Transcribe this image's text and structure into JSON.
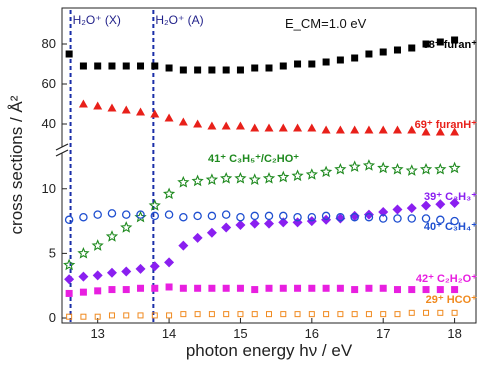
{
  "chart_data": {
    "type": "scatter",
    "xlabel": "photon energy hν / eV",
    "ylabel": "cross sections / Å²",
    "xlim": [
      12.5,
      18.3
    ],
    "x_ticks": [
      "13",
      "14",
      "15",
      "16",
      "17",
      "18"
    ],
    "y_ticks_upper": [
      "40",
      "60",
      "80"
    ],
    "y_ticks_lower": [
      "0",
      "5",
      "10"
    ],
    "axis_break": true,
    "ylim_lower": [
      0,
      13
    ],
    "ylim_upper": [
      28,
      88
    ],
    "condition_label": "E_CM=1.0 eV",
    "thresholds": [
      {
        "label": "H₂O⁺ (X)",
        "x": 12.62,
        "color": "#1a2ea8"
      },
      {
        "label": "H₂O⁺ (A)",
        "x": 13.78,
        "color": "#1a2ea8"
      }
    ],
    "series": [
      {
        "name": "68⁺ furan⁺",
        "color": "#000000",
        "marker": "square",
        "panel": "upper",
        "points": [
          [
            12.6,
            75
          ],
          [
            12.8,
            69
          ],
          [
            13.0,
            69
          ],
          [
            13.2,
            69
          ],
          [
            13.4,
            69
          ],
          [
            13.6,
            69
          ],
          [
            13.8,
            69
          ],
          [
            14.0,
            68
          ],
          [
            14.2,
            67
          ],
          [
            14.4,
            67
          ],
          [
            14.6,
            67
          ],
          [
            14.8,
            67
          ],
          [
            15.0,
            67
          ],
          [
            15.2,
            68
          ],
          [
            15.4,
            68
          ],
          [
            15.6,
            69
          ],
          [
            15.8,
            70
          ],
          [
            16.0,
            70
          ],
          [
            16.2,
            71
          ],
          [
            16.4,
            72
          ],
          [
            16.6,
            73
          ],
          [
            16.8,
            75
          ],
          [
            17.0,
            76
          ],
          [
            17.2,
            77
          ],
          [
            17.4,
            78
          ],
          [
            17.6,
            80
          ],
          [
            17.8,
            81
          ],
          [
            18.0,
            82
          ]
        ]
      },
      {
        "name": "69⁺ furanH⁺",
        "color": "#e8201a",
        "marker": "triangle",
        "panel": "upper",
        "points": [
          [
            12.8,
            50
          ],
          [
            13.0,
            49
          ],
          [
            13.2,
            48
          ],
          [
            13.4,
            47
          ],
          [
            13.6,
            46
          ],
          [
            13.8,
            45
          ],
          [
            14.0,
            43
          ],
          [
            14.2,
            41
          ],
          [
            14.4,
            40
          ],
          [
            14.6,
            39
          ],
          [
            14.8,
            39
          ],
          [
            15.0,
            39
          ],
          [
            15.2,
            38
          ],
          [
            15.4,
            38
          ],
          [
            15.6,
            38
          ],
          [
            15.8,
            38
          ],
          [
            16.0,
            38
          ],
          [
            16.2,
            37
          ],
          [
            16.4,
            37
          ],
          [
            16.6,
            37
          ],
          [
            16.8,
            37
          ],
          [
            17.0,
            37
          ],
          [
            17.2,
            37
          ],
          [
            17.4,
            37
          ],
          [
            17.6,
            36
          ],
          [
            17.8,
            36
          ],
          [
            18.0,
            36
          ]
        ]
      },
      {
        "name": "41⁺ C₃H₅⁺/C₂HO⁺",
        "color": "#1f8a1f",
        "marker": "star",
        "panel": "lower",
        "points": [
          [
            12.6,
            4.1
          ],
          [
            12.8,
            5.0
          ],
          [
            13.0,
            5.6
          ],
          [
            13.2,
            6.3
          ],
          [
            13.4,
            7.0
          ],
          [
            13.6,
            7.8
          ],
          [
            13.8,
            8.7
          ],
          [
            14.0,
            9.6
          ],
          [
            14.2,
            10.5
          ],
          [
            14.4,
            10.6
          ],
          [
            14.6,
            10.7
          ],
          [
            14.8,
            10.8
          ],
          [
            15.0,
            10.8
          ],
          [
            15.2,
            10.7
          ],
          [
            15.4,
            10.8
          ],
          [
            15.6,
            10.9
          ],
          [
            15.8,
            11.0
          ],
          [
            16.0,
            11.1
          ],
          [
            16.2,
            11.3
          ],
          [
            16.4,
            11.5
          ],
          [
            16.6,
            11.7
          ],
          [
            16.8,
            11.8
          ],
          [
            17.0,
            11.6
          ],
          [
            17.2,
            11.5
          ],
          [
            17.4,
            11.4
          ],
          [
            17.6,
            11.5
          ],
          [
            17.8,
            11.5
          ],
          [
            18.0,
            11.6
          ]
        ]
      },
      {
        "name": "39⁺ C₃H₃⁺",
        "color": "#8a1ff0",
        "marker": "diamond",
        "panel": "lower",
        "points": [
          [
            12.6,
            3.0
          ],
          [
            12.8,
            3.2
          ],
          [
            13.0,
            3.3
          ],
          [
            13.2,
            3.5
          ],
          [
            13.4,
            3.6
          ],
          [
            13.6,
            3.8
          ],
          [
            13.8,
            4.0
          ],
          [
            14.0,
            4.3
          ],
          [
            14.2,
            5.6
          ],
          [
            14.4,
            6.2
          ],
          [
            14.6,
            6.6
          ],
          [
            14.8,
            7.0
          ],
          [
            15.0,
            7.2
          ],
          [
            15.2,
            7.3
          ],
          [
            15.4,
            7.3
          ],
          [
            15.6,
            7.4
          ],
          [
            15.8,
            7.4
          ],
          [
            16.0,
            7.5
          ],
          [
            16.2,
            7.6
          ],
          [
            16.4,
            7.7
          ],
          [
            16.6,
            7.9
          ],
          [
            16.8,
            8.0
          ],
          [
            17.0,
            8.2
          ],
          [
            17.2,
            8.4
          ],
          [
            17.4,
            8.5
          ],
          [
            17.6,
            8.7
          ],
          [
            17.8,
            8.8
          ],
          [
            18.0,
            8.9
          ]
        ]
      },
      {
        "name": "40⁺ C₃H₄⁺",
        "color": "#1f4fd0",
        "marker": "circle",
        "panel": "lower",
        "points": [
          [
            12.6,
            7.6
          ],
          [
            12.8,
            7.8
          ],
          [
            13.0,
            8.0
          ],
          [
            13.2,
            8.1
          ],
          [
            13.4,
            8.0
          ],
          [
            13.6,
            8.0
          ],
          [
            13.8,
            7.9
          ],
          [
            14.0,
            8.0
          ],
          [
            14.2,
            7.8
          ],
          [
            14.4,
            7.9
          ],
          [
            14.6,
            7.9
          ],
          [
            14.8,
            8.0
          ],
          [
            15.0,
            7.8
          ],
          [
            15.2,
            7.9
          ],
          [
            15.4,
            7.9
          ],
          [
            15.6,
            7.9
          ],
          [
            15.8,
            7.8
          ],
          [
            16.0,
            7.8
          ],
          [
            16.2,
            7.9
          ],
          [
            16.4,
            7.8
          ],
          [
            16.6,
            7.8
          ],
          [
            16.8,
            7.8
          ],
          [
            17.0,
            7.7
          ],
          [
            17.2,
            7.7
          ],
          [
            17.4,
            7.7
          ],
          [
            17.6,
            7.7
          ],
          [
            17.8,
            7.6
          ],
          [
            18.0,
            7.5
          ]
        ]
      },
      {
        "name": "42⁺ C₂H₂O⁺",
        "color": "#e81fe0",
        "marker": "square",
        "panel": "lower",
        "points": [
          [
            12.6,
            1.9
          ],
          [
            12.8,
            2.0
          ],
          [
            13.0,
            2.1
          ],
          [
            13.2,
            2.2
          ],
          [
            13.4,
            2.2
          ],
          [
            13.6,
            2.3
          ],
          [
            13.8,
            2.3
          ],
          [
            14.0,
            2.4
          ],
          [
            14.2,
            2.3
          ],
          [
            14.4,
            2.3
          ],
          [
            14.6,
            2.3
          ],
          [
            14.8,
            2.3
          ],
          [
            15.0,
            2.3
          ],
          [
            15.2,
            2.2
          ],
          [
            15.4,
            2.3
          ],
          [
            15.6,
            2.3
          ],
          [
            15.8,
            2.3
          ],
          [
            16.0,
            2.3
          ],
          [
            16.2,
            2.3
          ],
          [
            16.4,
            2.3
          ],
          [
            16.6,
            2.2
          ],
          [
            16.8,
            2.3
          ],
          [
            17.0,
            2.3
          ],
          [
            17.2,
            2.2
          ],
          [
            17.4,
            2.2
          ],
          [
            17.6,
            2.2
          ],
          [
            17.8,
            2.2
          ],
          [
            18.0,
            2.2
          ]
        ]
      },
      {
        "name": "29⁺ HCO⁺",
        "color": "#f08a1f",
        "marker": "square-open",
        "panel": "lower",
        "points": [
          [
            12.6,
            0.1
          ],
          [
            12.8,
            0.1
          ],
          [
            13.0,
            0.1
          ],
          [
            13.2,
            0.2
          ],
          [
            13.4,
            0.2
          ],
          [
            13.6,
            0.2
          ],
          [
            13.8,
            0.2
          ],
          [
            14.0,
            0.2
          ],
          [
            14.2,
            0.3
          ],
          [
            14.4,
            0.3
          ],
          [
            14.6,
            0.3
          ],
          [
            14.8,
            0.3
          ],
          [
            15.0,
            0.3
          ],
          [
            15.2,
            0.3
          ],
          [
            15.4,
            0.3
          ],
          [
            15.6,
            0.3
          ],
          [
            15.8,
            0.3
          ],
          [
            16.0,
            0.3
          ],
          [
            16.2,
            0.3
          ],
          [
            16.4,
            0.3
          ],
          [
            16.6,
            0.3
          ],
          [
            16.8,
            0.3
          ],
          [
            17.0,
            0.3
          ],
          [
            17.2,
            0.3
          ],
          [
            17.4,
            0.4
          ],
          [
            17.6,
            0.4
          ],
          [
            17.8,
            0.4
          ],
          [
            18.0,
            0.4
          ]
        ]
      }
    ]
  }
}
